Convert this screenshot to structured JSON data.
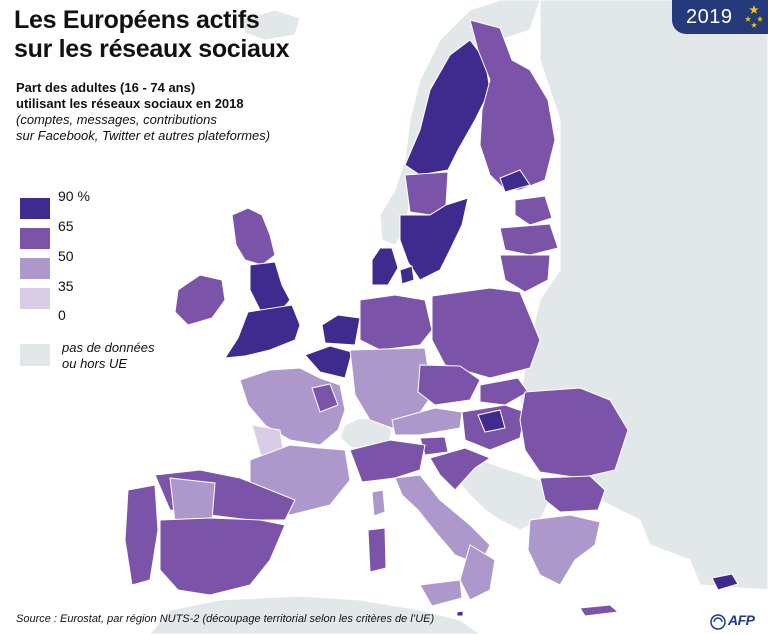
{
  "title": {
    "line1": "Les Européens actifs",
    "line2": "sur les réseaux sociaux"
  },
  "subtitle": {
    "line1": "Part des adultes (16 - 74 ans)",
    "line2": "utilisant les réseaux sociaux en 2018",
    "line3": "(comptes, messages, contributions",
    "line4": "sur Facebook, Twitter et autres plateformes)"
  },
  "badge": {
    "year": "2019",
    "color": "#253a7a"
  },
  "legend": {
    "items": [
      {
        "label": "90 %",
        "color": "#3f2a8e"
      },
      {
        "label": "65",
        "color": "#7b53a8"
      },
      {
        "label": "50",
        "color": "#ad98cc"
      },
      {
        "label": "35",
        "color": "#d8cce6"
      },
      {
        "label": "0"
      }
    ],
    "no_data": {
      "line1": "pas de données",
      "line2": "ou hors UE",
      "color": "#e2e8ea"
    }
  },
  "colors": {
    "sea": "#ffffff",
    "non_eu_land": "#e2e8ea",
    "border": "#ffffff",
    "afp_blue": "#1d3b8c"
  },
  "source": "Source : Eurostat, par région NUTS-2 (découpage territorial selon les critères de l’UE)",
  "credit": {
    "text": "AFP",
    "icon": "afp-logo-icon"
  }
}
